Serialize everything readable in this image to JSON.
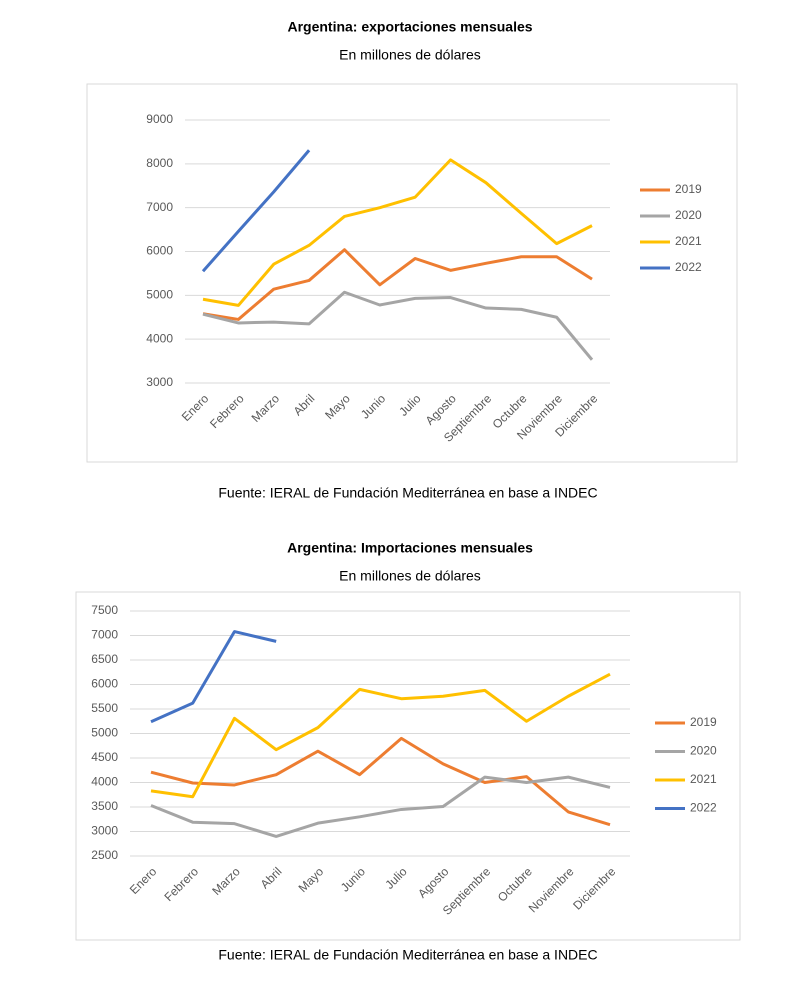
{
  "chart_data": [
    {
      "type": "line",
      "title": "Argentina: exportaciones mensuales",
      "subtitle": "En millones de dólares",
      "source": "Fuente: IERAL de Fundación Mediterránea en base a INDEC",
      "categories": [
        "Enero",
        "Febrero",
        "Marzo",
        "Abril",
        "Mayo",
        "Junio",
        "Julio",
        "Agosto",
        "Septiembre",
        "Octubre",
        "Noviembre",
        "Diciembre"
      ],
      "ylim": [
        3000,
        9000
      ],
      "yticks": [
        3000,
        4000,
        5000,
        6000,
        7000,
        8000,
        9000
      ],
      "grid": true,
      "legend": "right",
      "series": [
        {
          "name": "2019",
          "color": "#ed7d31",
          "values": [
            4580,
            4450,
            5140,
            5340,
            6040,
            5240,
            5840,
            5570,
            5730,
            5880,
            5880,
            5370
          ]
        },
        {
          "name": "2020",
          "color": "#a5a5a5",
          "values": [
            4570,
            4370,
            4390,
            4350,
            5070,
            4780,
            4930,
            4950,
            4710,
            4680,
            4500,
            3530
          ]
        },
        {
          "name": "2021",
          "color": "#ffc000",
          "values": [
            4910,
            4770,
            5710,
            6140,
            6800,
            7000,
            7240,
            8090,
            7570,
            6870,
            6180,
            6590
          ]
        },
        {
          "name": "2022",
          "color": "#4472c4",
          "values": [
            5550,
            6460,
            7360,
            8310,
            null,
            null,
            null,
            null,
            null,
            null,
            null,
            null
          ]
        }
      ]
    },
    {
      "type": "line",
      "title": "Argentina: Importaciones mensuales",
      "subtitle": "En millones de dólares",
      "source": "Fuente: IERAL de Fundación Mediterránea en base a INDEC",
      "categories": [
        "Enero",
        "Febrero",
        "Marzo",
        "Abril",
        "Mayo",
        "Junio",
        "Julio",
        "Agosto",
        "Septiembre",
        "Octubre",
        "Noviembre",
        "Diciembre"
      ],
      "ylim": [
        2500,
        7500
      ],
      "yticks": [
        2500,
        3000,
        3500,
        4000,
        4500,
        5000,
        5500,
        6000,
        6500,
        7000,
        7500
      ],
      "grid": true,
      "legend": "right",
      "series": [
        {
          "name": "2019",
          "color": "#ed7d31",
          "values": [
            4210,
            3990,
            3950,
            4160,
            4640,
            4160,
            4900,
            4380,
            4000,
            4120,
            3400,
            3140
          ]
        },
        {
          "name": "2020",
          "color": "#a5a5a5",
          "values": [
            3530,
            3190,
            3160,
            2900,
            3170,
            3300,
            3450,
            3510,
            4110,
            4000,
            4110,
            3900
          ]
        },
        {
          "name": "2021",
          "color": "#ffc000",
          "values": [
            3830,
            3710,
            5310,
            4670,
            5120,
            5900,
            5710,
            5760,
            5880,
            5250,
            5760,
            6210
          ]
        },
        {
          "name": "2022",
          "color": "#4472c4",
          "values": [
            5240,
            5620,
            7080,
            6880,
            null,
            null,
            null,
            null,
            null,
            null,
            null,
            null
          ]
        }
      ]
    }
  ]
}
